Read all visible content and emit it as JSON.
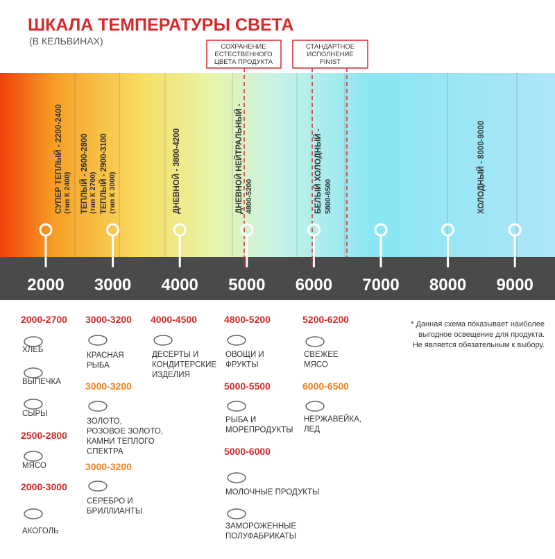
{
  "header": {
    "title": "ШКАЛА ТЕМПЕРАТУРЫ СВЕТА",
    "subtitle": "(В КЕЛЬВИНАХ)"
  },
  "callouts": [
    [
      "СОХРАНЕНИЕ",
      "ЕСТЕСТВЕННОГО",
      "ЦВЕТА ПРОДУКТА"
    ],
    [
      "СТАНДАРТНОЕ",
      "ИСПОЛНЕНИЕ",
      "FINIST"
    ]
  ],
  "bands": [
    [
      "СУПЕР ТЕПЛЫЙ - 2200-2400",
      "(тип К 2400)"
    ],
    [
      "ТЕПЛЫЙ - 2600-2800",
      "(тип К 2700)"
    ],
    [
      "ТЕПЛЫЙ - 2900-3100",
      "(тип К 3000)"
    ],
    [
      "ДНЕВНОЙ - 3800-4200"
    ],
    [
      "ДНЕВНОЙ НЕЙТРАЛЬНЫЙ -",
      "4800-5200"
    ],
    [
      "БЕЛЫЙ ХОЛОДНЫЙ -",
      "5800-6500"
    ],
    [
      "ХОЛОДНЫЙ - 8000-9000"
    ]
  ],
  "scale": {
    "ticks": [
      "2000",
      "3000",
      "4000",
      "5000",
      "6000",
      "7000",
      "8000",
      "9000"
    ]
  },
  "groups": [
    {
      "range": "2000-2700",
      "color": "#d42a2a",
      "items": [
        [
          "ХЛЕБ"
        ],
        [
          "ВЫПЕЧКА"
        ],
        [
          "СЫРЫ"
        ]
      ]
    },
    {
      "range": "2500-2800",
      "color": "#d42a2a",
      "items": [
        [
          "МЯСО"
        ]
      ]
    },
    {
      "range": "2000-3000",
      "color": "#d42a2a",
      "items": [
        [
          "АКОГОЛЬ"
        ]
      ]
    },
    {
      "range": "3000-3200",
      "color": "#d42a2a",
      "items": [
        [
          "КРАСНАЯ",
          "РЫБА"
        ]
      ]
    },
    {
      "range": "3000-3200",
      "color": "#f0801e",
      "items": [
        [
          "ЗОЛОТО,",
          "РОЗОВОЕ ЗОЛОТО,",
          "КАМНИ ТЕПЛОГО",
          "СПЕКТРА"
        ]
      ]
    },
    {
      "range": "3000-3200",
      "color": "#f0801e",
      "items": [
        [
          "СЕРЕБРО И",
          "БРИЛЛИАНТЫ"
        ]
      ]
    },
    {
      "range": "4000-4500",
      "color": "#d42a2a",
      "items": [
        [
          "ДЕСЕРТЫ И",
          "КОНДИТЕРСКИЕ",
          "ИЗДЕЛИЯ"
        ]
      ]
    },
    {
      "range": "4800-5200",
      "color": "#d42a2a",
      "items": [
        [
          "ОВОЩИ И",
          "ФРУКТЫ"
        ]
      ]
    },
    {
      "range": "5000-5500",
      "color": "#d42a2a",
      "items": [
        [
          "РЫБА И",
          "МОРЕПРОДУКТЫ"
        ]
      ]
    },
    {
      "range": "5000-6000",
      "color": "#d42a2a",
      "items": [
        [
          "МОЛОЧНЫЕ ПРОДУКТЫ"
        ],
        [
          "ЗАМОРОЖЕННЫЕ",
          "ПОЛУФАБРИКАТЫ"
        ]
      ]
    },
    {
      "range": "5200-6200",
      "color": "#d42a2a",
      "items": [
        [
          "СВЕЖЕЕ",
          "МЯСО"
        ]
      ]
    },
    {
      "range": "6000-6500",
      "color": "#f0801e",
      "items": [
        [
          "НЕРЖАВЕЙКА,",
          "ЛЕД"
        ]
      ]
    }
  ],
  "note": [
    "* Данная схема показывает наиболее",
    "выгодное освещение для продукта.",
    "Не является обязательным к выбору."
  ]
}
